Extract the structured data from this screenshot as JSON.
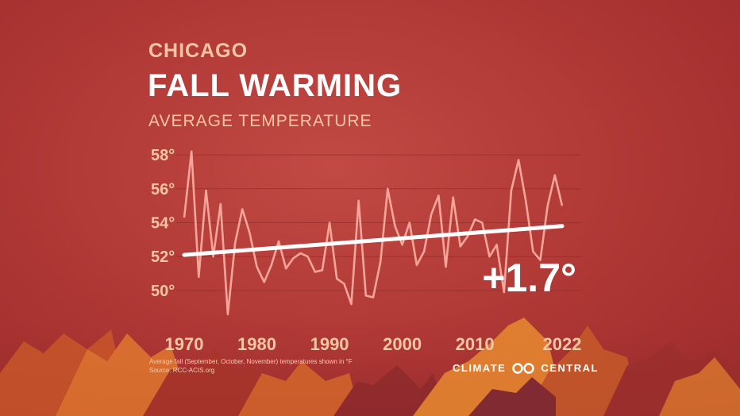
{
  "header": {
    "city": "CHICAGO",
    "title": "FALL WARMING",
    "subtitle": "AVERAGE TEMPERATURE"
  },
  "annotation": {
    "change": "+1.7°"
  },
  "footnote": {
    "line1": "Average fall (September, October, November) temperatures shown in °F",
    "line2": "Source: RCC-ACIS.org"
  },
  "brand": {
    "left": "CLIMATE",
    "right": "CENTRAL"
  },
  "colors": {
    "background": "#b23a37",
    "series_line": "#f5a49a",
    "trend_line": "#ffffff",
    "tick_text": "#f6c6a4",
    "grid": "#8e2e2c"
  },
  "chart_data": {
    "type": "line",
    "title": "FALL WARMING",
    "subtitle": "AVERAGE TEMPERATURE",
    "xlabel": "",
    "ylabel": "",
    "x": [
      1970,
      1971,
      1972,
      1973,
      1974,
      1975,
      1976,
      1977,
      1978,
      1979,
      1980,
      1981,
      1982,
      1983,
      1984,
      1985,
      1986,
      1987,
      1988,
      1989,
      1990,
      1991,
      1992,
      1993,
      1994,
      1995,
      1996,
      1997,
      1998,
      1999,
      2000,
      2001,
      2002,
      2003,
      2004,
      2005,
      2006,
      2007,
      2008,
      2009,
      2010,
      2011,
      2012,
      2013,
      2014,
      2015,
      2016,
      2017,
      2018,
      2019,
      2020,
      2021,
      2022
    ],
    "series": [
      {
        "values": [
          54.3,
          58.2,
          50.8,
          55.9,
          52.0,
          55.1,
          48.6,
          52.8,
          54.8,
          53.4,
          51.4,
          50.5,
          51.5,
          52.9,
          51.3,
          51.9,
          52.2,
          52.0,
          51.1,
          51.2,
          54.0,
          50.7,
          50.4,
          49.2,
          55.3,
          49.7,
          49.6,
          51.7,
          56.0,
          53.8,
          52.7,
          54.0,
          51.5,
          52.3,
          54.5,
          55.6,
          51.4,
          55.5,
          52.6,
          53.2,
          54.2,
          54.0,
          52.0,
          52.7,
          49.9,
          55.9,
          57.7,
          55.3,
          52.3,
          51.8,
          55.0,
          56.8,
          55.0
        ]
      }
    ],
    "trend": {
      "start_year": 1970,
      "start_value": 52.1,
      "end_year": 2022,
      "end_value": 53.8
    },
    "ylim": [
      48.5,
      58.8
    ],
    "y_ticks": [
      50,
      52,
      54,
      56,
      58
    ],
    "y_tick_labels": [
      "50°",
      "52°",
      "54°",
      "56°",
      "58°"
    ],
    "x_ticks": [
      1970,
      1980,
      1990,
      2000,
      2010,
      2022
    ],
    "x_tick_labels": [
      "1970",
      "1980",
      "1990",
      "2000",
      "2010",
      "2022"
    ],
    "grid": true,
    "annotations": [
      "+1.7°"
    ]
  }
}
